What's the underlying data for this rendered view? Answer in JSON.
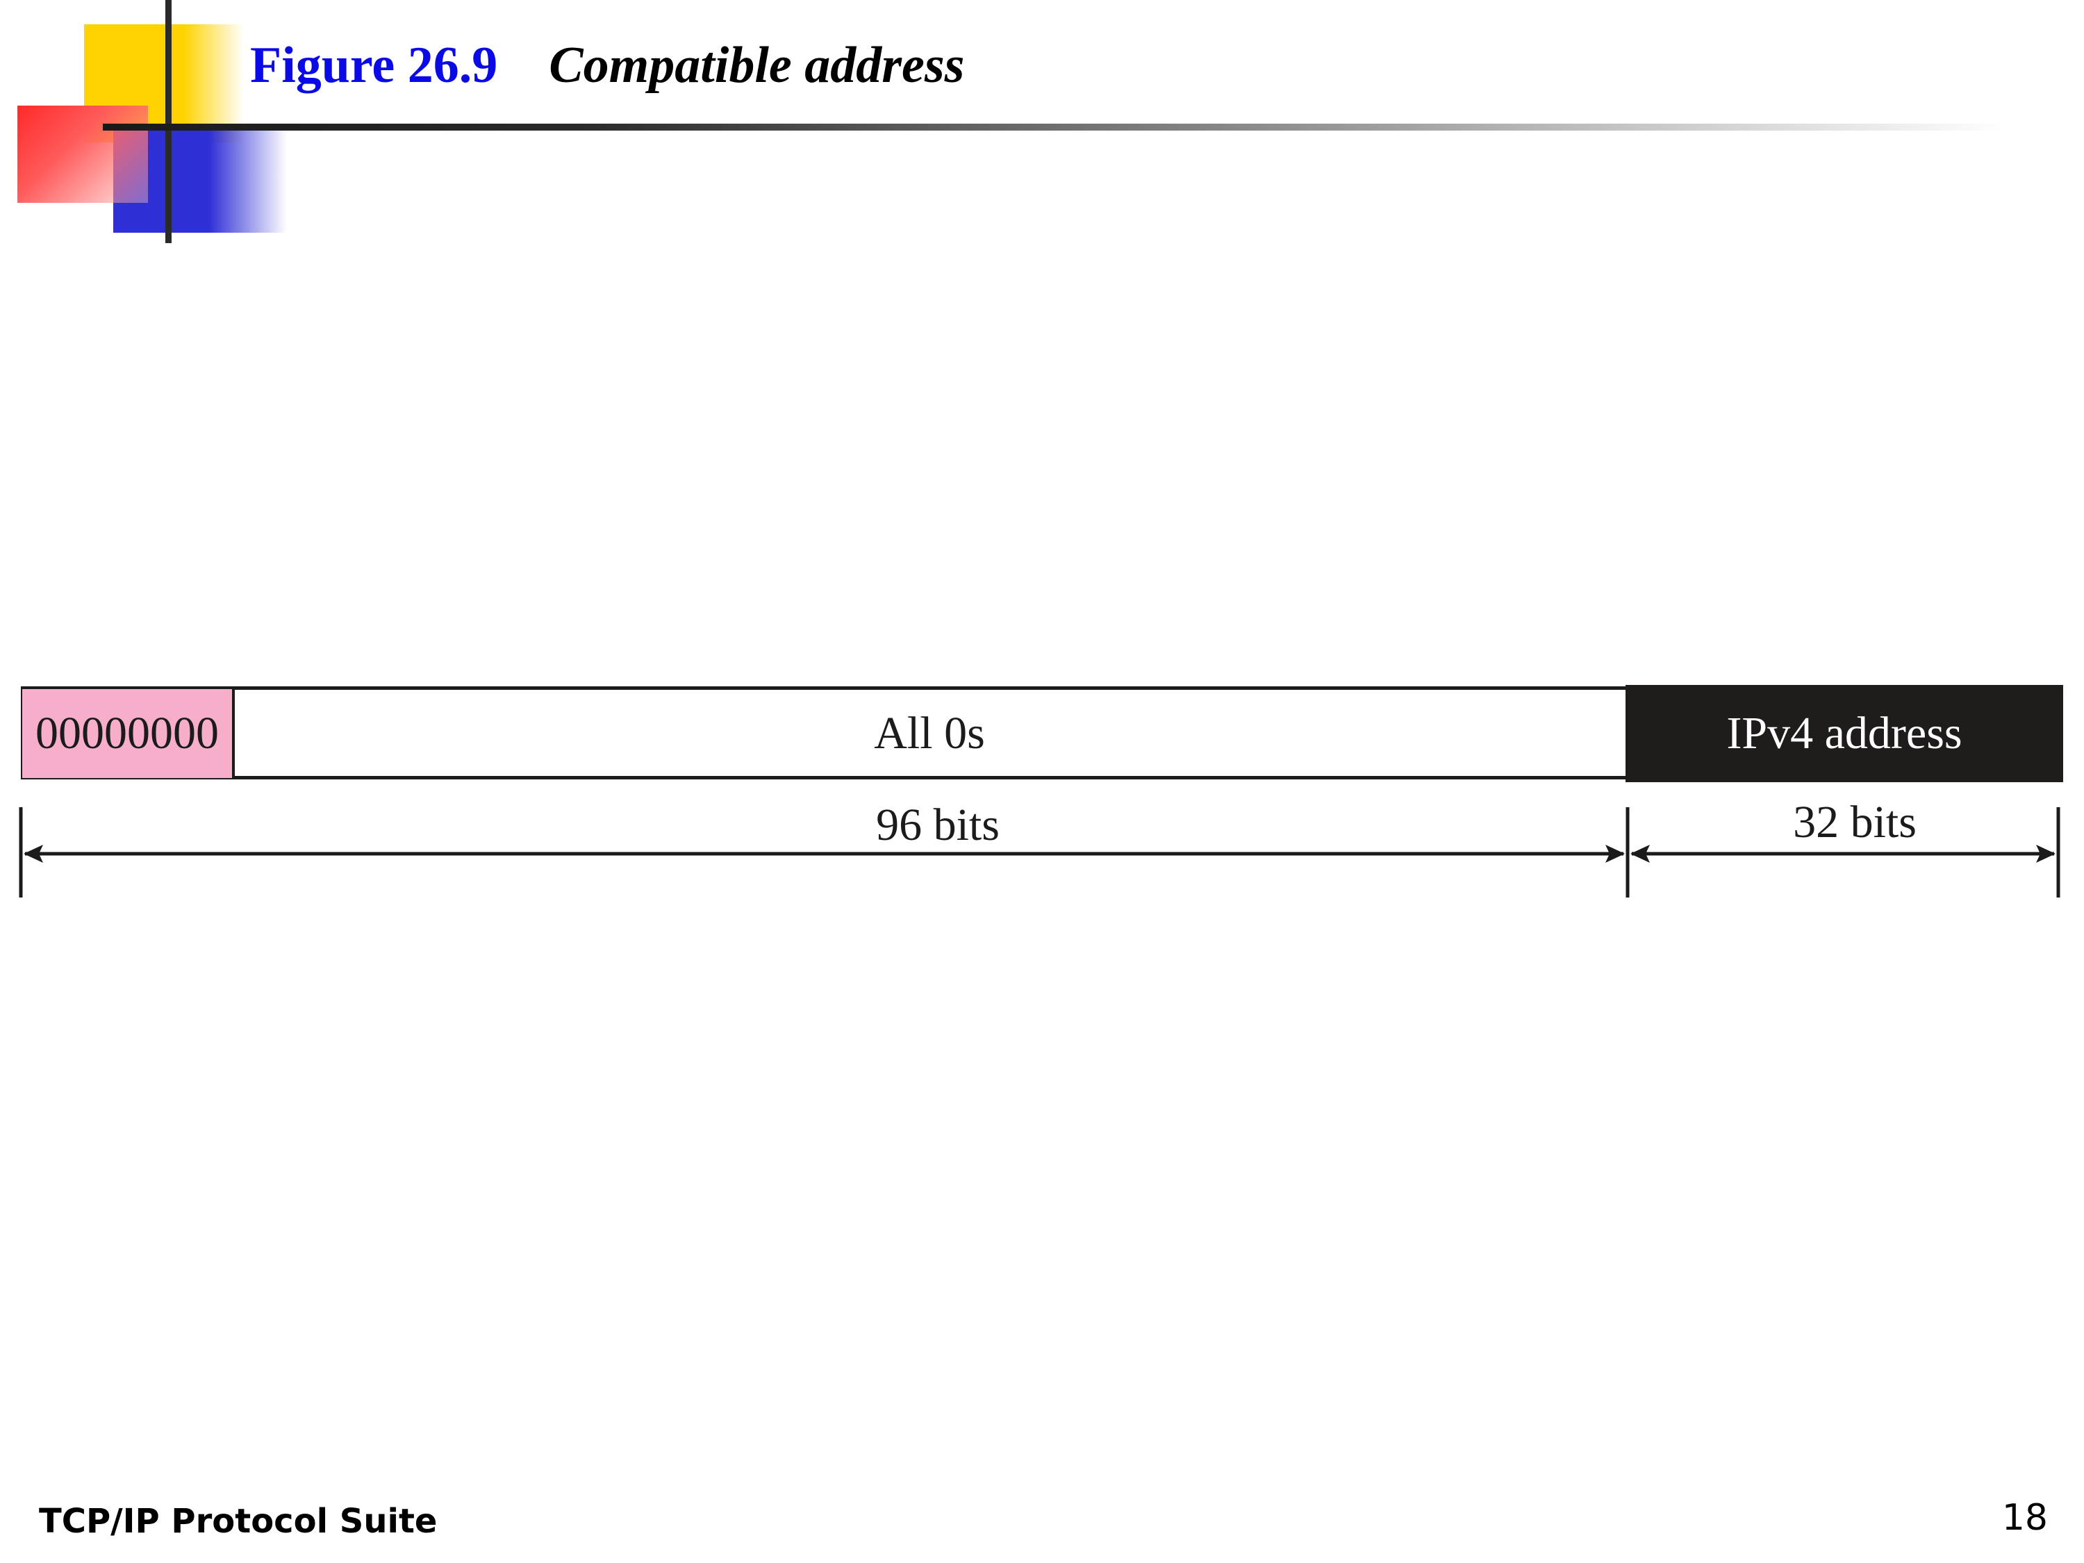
{
  "title": {
    "figure_label": "Figure 26.9",
    "caption": "Compatible address"
  },
  "diagram": {
    "prefix_field": "00000000",
    "zeros_field": "All 0s",
    "ipv4_field": "IPv4 address",
    "first_span_label": "96 bits",
    "second_span_label": "32 bits"
  },
  "footer": {
    "course": "TCP/IP Protocol Suite",
    "page_number": "18"
  },
  "colors": {
    "title_blue": "#0a0ae6",
    "prefix_pink": "#f7aeca",
    "ipv4_fill": "#1f1c1c"
  }
}
